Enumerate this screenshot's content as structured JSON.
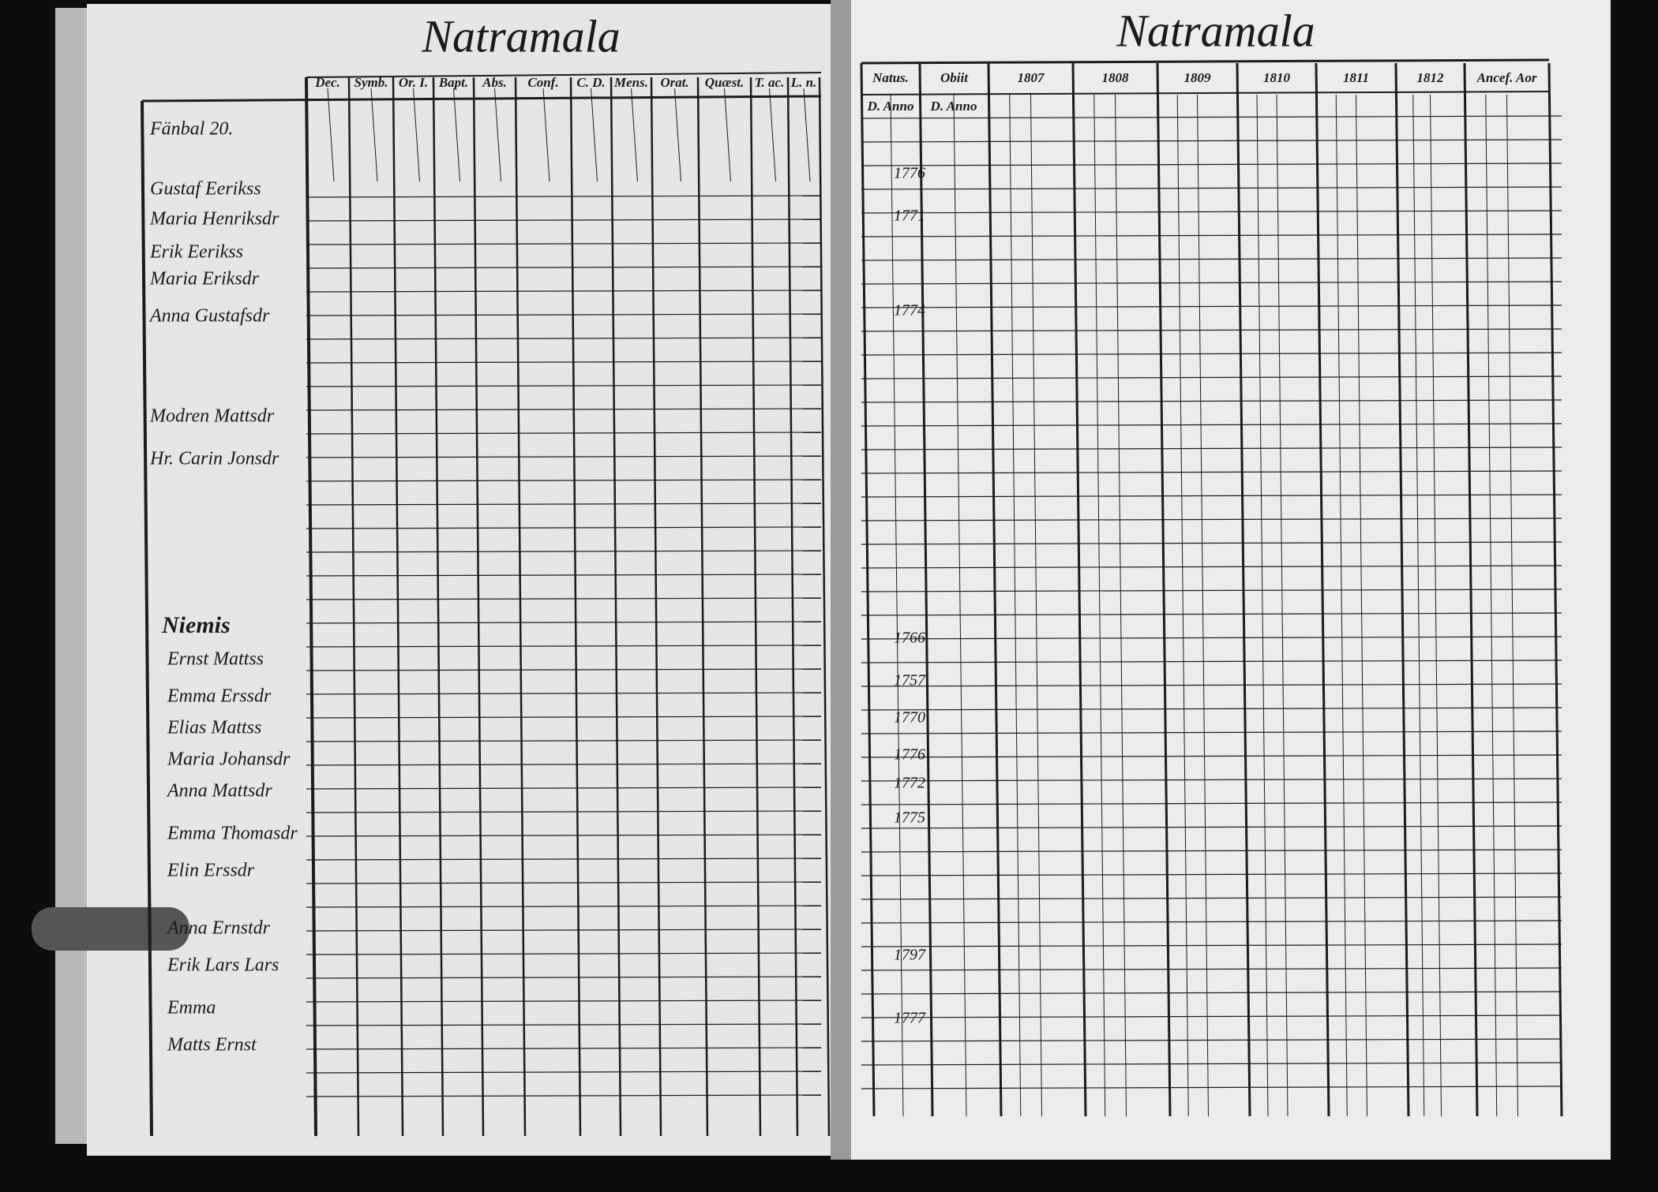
{
  "left_page": {
    "title": "Natramala",
    "column_headers": [
      "Dec.",
      "Symb.",
      "Or. I.",
      "Bapt.",
      "Abs.",
      "Conf.",
      "C. D.",
      "Mens.",
      "Orat.",
      "Quæst.",
      "T. ac.",
      "L. n."
    ],
    "village_1": "Fänbal 20.",
    "names_1": [
      "Gustaf Eerikss",
      "Maria Henriksdr",
      "Erik Eerikss",
      "Maria Eriksdr",
      "Anna Gustafsdr",
      "Modren Mattsdr",
      "Hr. Carin Jonsdr"
    ],
    "village_2": "Niemis",
    "names_2": [
      "Ernst Mattss",
      "Emma Erssdr",
      "Elias Mattss",
      "Maria Johansdr",
      "Anna Mattsdr",
      "Emma Thomasdr",
      "Elin Erssdr",
      "Anna Ernstdr",
      "Erik Lars Lars",
      "Emma",
      "Matts Ernst"
    ]
  },
  "right_page": {
    "title": "Natramala",
    "column_headers": [
      "Natus.",
      "Obiit",
      "1807",
      "1808",
      "1809",
      "1810",
      "1811",
      "1812",
      "Ancef. Aor"
    ],
    "sub_headers": [
      "D. Anno",
      "D. Anno"
    ],
    "birth_years": [
      "1776",
      "1771",
      "1774",
      "1766",
      "1757",
      "1770",
      "1776",
      "1772",
      "1775",
      "1797",
      "1777"
    ]
  }
}
